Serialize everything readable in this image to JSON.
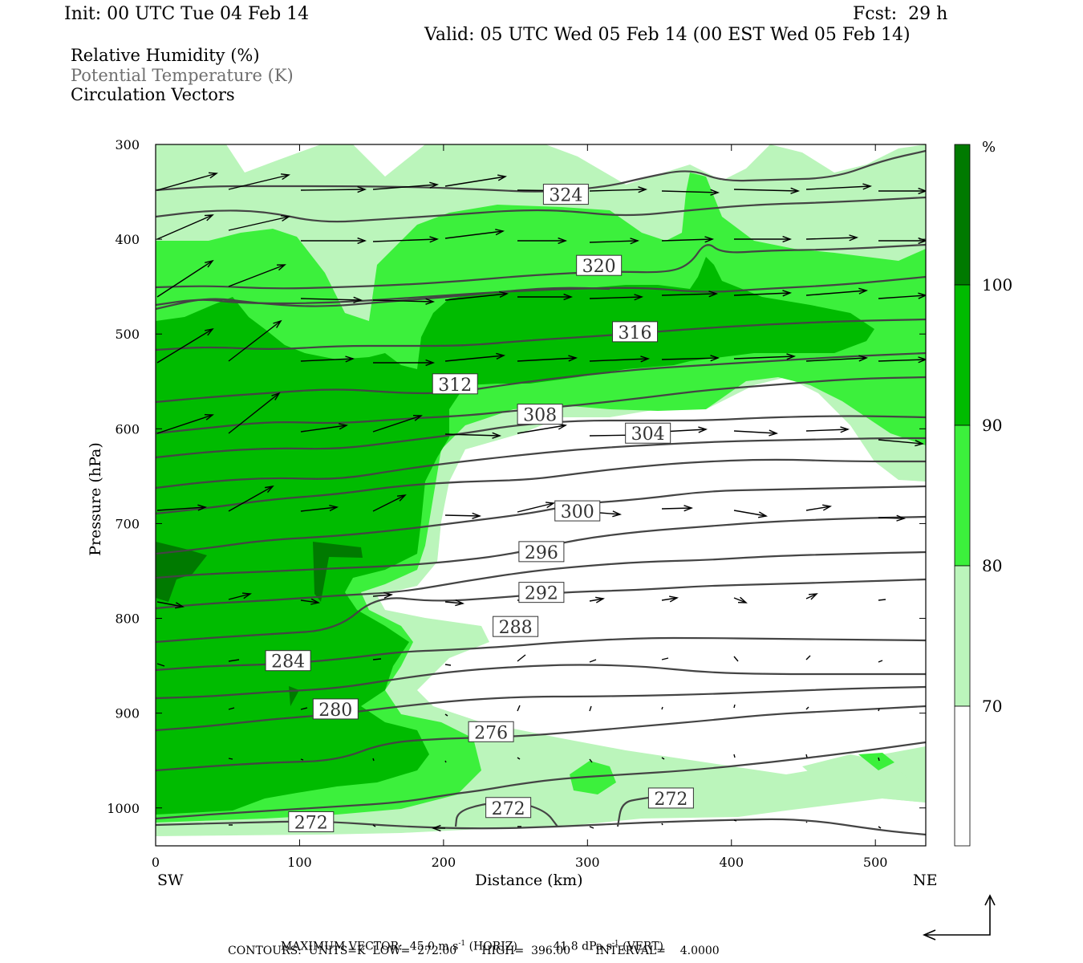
{
  "header": {
    "init": "Init: 00 UTC Tue 04 Feb 14",
    "fcst": "Fcst:  29 h",
    "valid": "Valid: 05 UTC Wed 05 Feb 14 (00 EST Wed 05 Feb 14)"
  },
  "legend": {
    "rh": "Relative Humidity (%)",
    "theta": "Potential Temperature (K)",
    "vectors": "Circulation Vectors"
  },
  "colors": {
    "rh_70_80": "#bbf5bb",
    "rh_80_90": "#3cf03c",
    "rh_90_100": "#00bb00",
    "rh_100": "#007a00",
    "contour": "#444444",
    "vector": "#000000",
    "label_box_fill": "#ffffff"
  },
  "chart_data": {
    "type": "cross-section",
    "xlabel": "Distance (km)",
    "ylabel": "Pressure (hPa)",
    "xlim": [
      0,
      535
    ],
    "ylim": [
      1040,
      300
    ],
    "x_ticks": [
      0,
      100,
      200,
      300,
      400,
      500
    ],
    "y_ticks": [
      300,
      400,
      500,
      600,
      700,
      800,
      900,
      1000
    ],
    "x_end_labels": {
      "left": "SW",
      "right": "NE"
    },
    "colorbar": {
      "unit": "%",
      "levels": [
        70,
        80,
        90,
        100
      ],
      "level_labels": [
        "70",
        "80",
        "90",
        "100"
      ]
    },
    "theta_contours": {
      "unit": "K",
      "labels": [
        {
          "value": 324,
          "x": 285,
          "p": 353
        },
        {
          "value": 320,
          "x": 308,
          "p": 428
        },
        {
          "value": 316,
          "x": 333,
          "p": 498
        },
        {
          "value": 312,
          "x": 208,
          "p": 553
        },
        {
          "value": 308,
          "x": 267,
          "p": 585
        },
        {
          "value": 304,
          "x": 342,
          "p": 605
        },
        {
          "value": 300,
          "x": 293,
          "p": 687
        },
        {
          "value": 296,
          "x": 268,
          "p": 730
        },
        {
          "value": 292,
          "x": 268,
          "p": 773
        },
        {
          "value": 288,
          "x": 250,
          "p": 809
        },
        {
          "value": 284,
          "x": 92,
          "p": 845
        },
        {
          "value": 280,
          "x": 125,
          "p": 896
        },
        {
          "value": 276,
          "x": 233,
          "p": 920
        },
        {
          "value": 272,
          "x": 245,
          "p": 1000
        },
        {
          "value": 272,
          "x": 358,
          "p": 990
        },
        {
          "value": 272,
          "x": 108,
          "p": 1015
        }
      ]
    },
    "max_vector": {
      "horizontal_m_s": 45.0,
      "vertical_dPa_s": 41.8
    },
    "contour_low": 272.0,
    "contour_high": 396.0,
    "contour_interval": 4.0
  },
  "footer": {
    "max_vector_label": "MAXIMUM VECTOR:",
    "horiz_value": "45.0 m s",
    "horiz_unit": "(HORIZ)",
    "vert_value": "41.8 dPa s",
    "vert_unit": "(VERT)",
    "exponent": "-1",
    "contours_line": "CONTOURS:  UNITS=K  LOW=  272.00       HIGH=  396.00       INTERVAL=    4.0000"
  }
}
